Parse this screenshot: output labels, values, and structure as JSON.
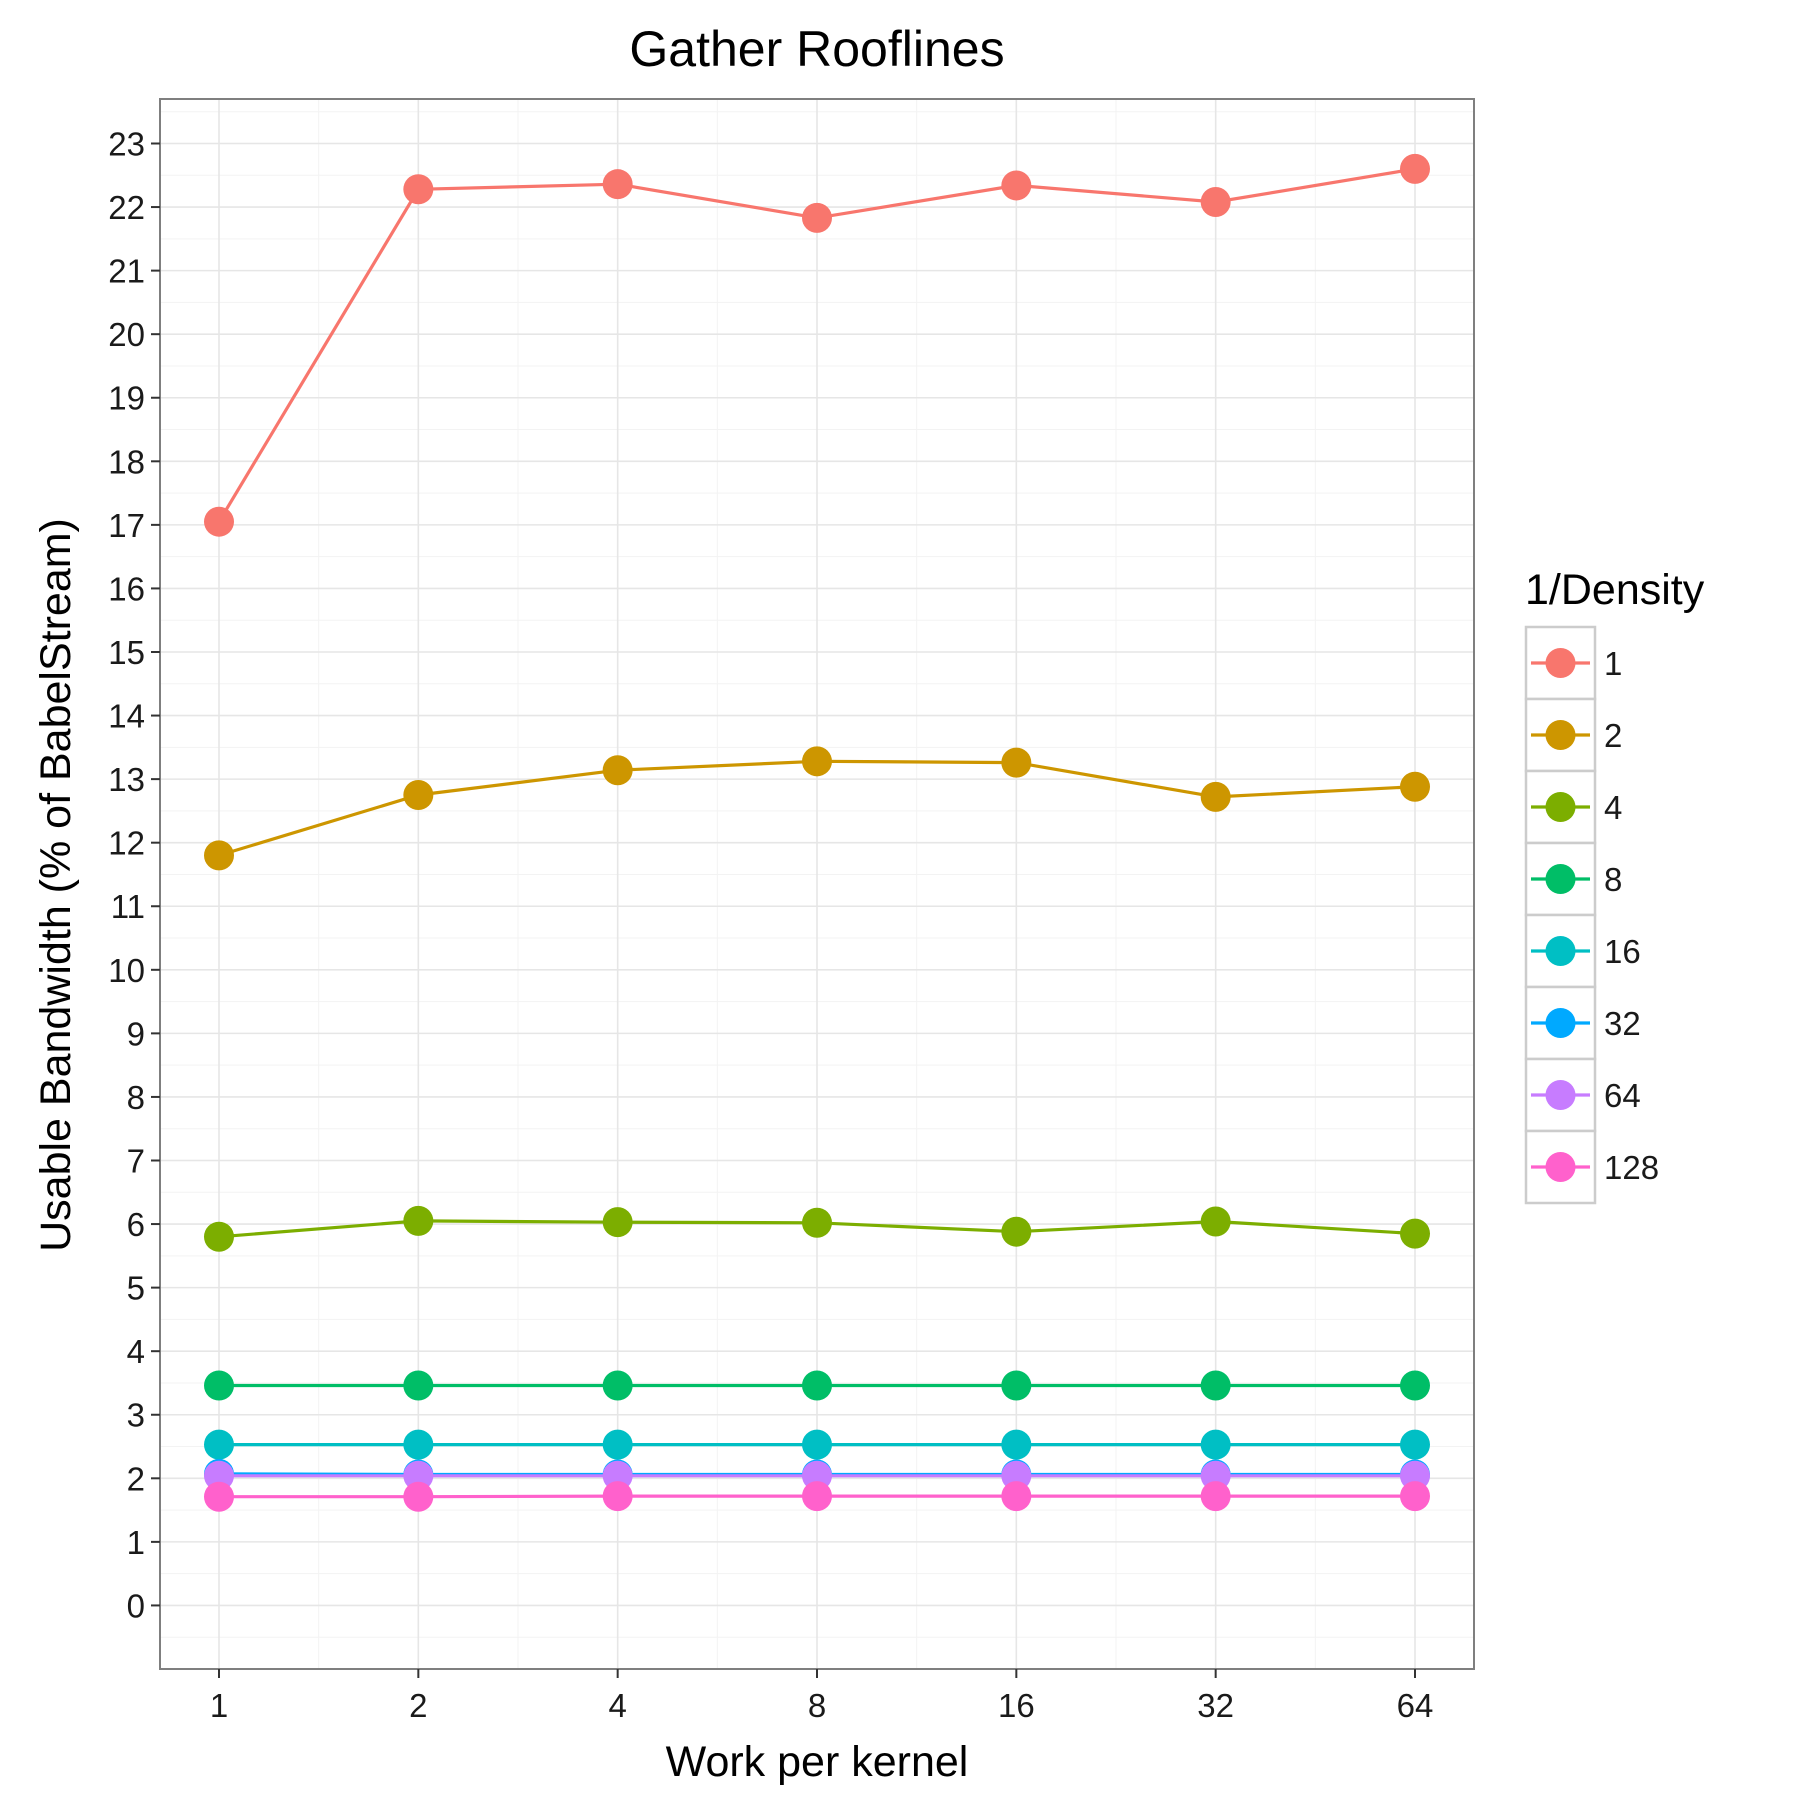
{
  "chart_data": {
    "type": "line",
    "title": "Gather Rooflines",
    "xlabel": "Work per kernel",
    "ylabel": "Usable Bandwidth (% of BabelStream)",
    "x_scale": "log2",
    "categories": [
      "1",
      "2",
      "4",
      "8",
      "16",
      "32",
      "64"
    ],
    "x": [
      1,
      2,
      4,
      8,
      16,
      32,
      64
    ],
    "ylim": [
      -1,
      23.7
    ],
    "y_ticks": [
      0,
      1,
      2,
      3,
      4,
      5,
      6,
      7,
      8,
      9,
      10,
      11,
      12,
      13,
      14,
      15,
      16,
      17,
      18,
      19,
      20,
      21,
      22,
      23
    ],
    "grid": true,
    "legend": {
      "title": "1/Density",
      "position": "right"
    },
    "series": [
      {
        "name": "1",
        "color": "#F8766D",
        "values": [
          17.05,
          22.28,
          22.36,
          21.83,
          22.34,
          22.08,
          22.6
        ]
      },
      {
        "name": "2",
        "color": "#CD9600",
        "values": [
          11.8,
          12.75,
          13.14,
          13.28,
          13.26,
          12.72,
          12.88
        ]
      },
      {
        "name": "4",
        "color": "#7CAE00",
        "values": [
          5.8,
          6.05,
          6.03,
          6.02,
          5.88,
          6.04,
          5.85
        ]
      },
      {
        "name": "8",
        "color": "#00BE67",
        "values": [
          3.46,
          3.46,
          3.46,
          3.46,
          3.46,
          3.46,
          3.46
        ]
      },
      {
        "name": "16",
        "color": "#00BFC4",
        "values": [
          2.53,
          2.53,
          2.53,
          2.53,
          2.53,
          2.53,
          2.53
        ]
      },
      {
        "name": "32",
        "color": "#00A9FF",
        "values": [
          2.07,
          2.06,
          2.06,
          2.06,
          2.06,
          2.06,
          2.06
        ]
      },
      {
        "name": "64",
        "color": "#C77CFF",
        "values": [
          2.04,
          2.04,
          2.04,
          2.04,
          2.04,
          2.04,
          2.04
        ]
      },
      {
        "name": "128",
        "color": "#FF61CC",
        "values": [
          1.71,
          1.71,
          1.72,
          1.72,
          1.72,
          1.72,
          1.72
        ]
      }
    ]
  }
}
